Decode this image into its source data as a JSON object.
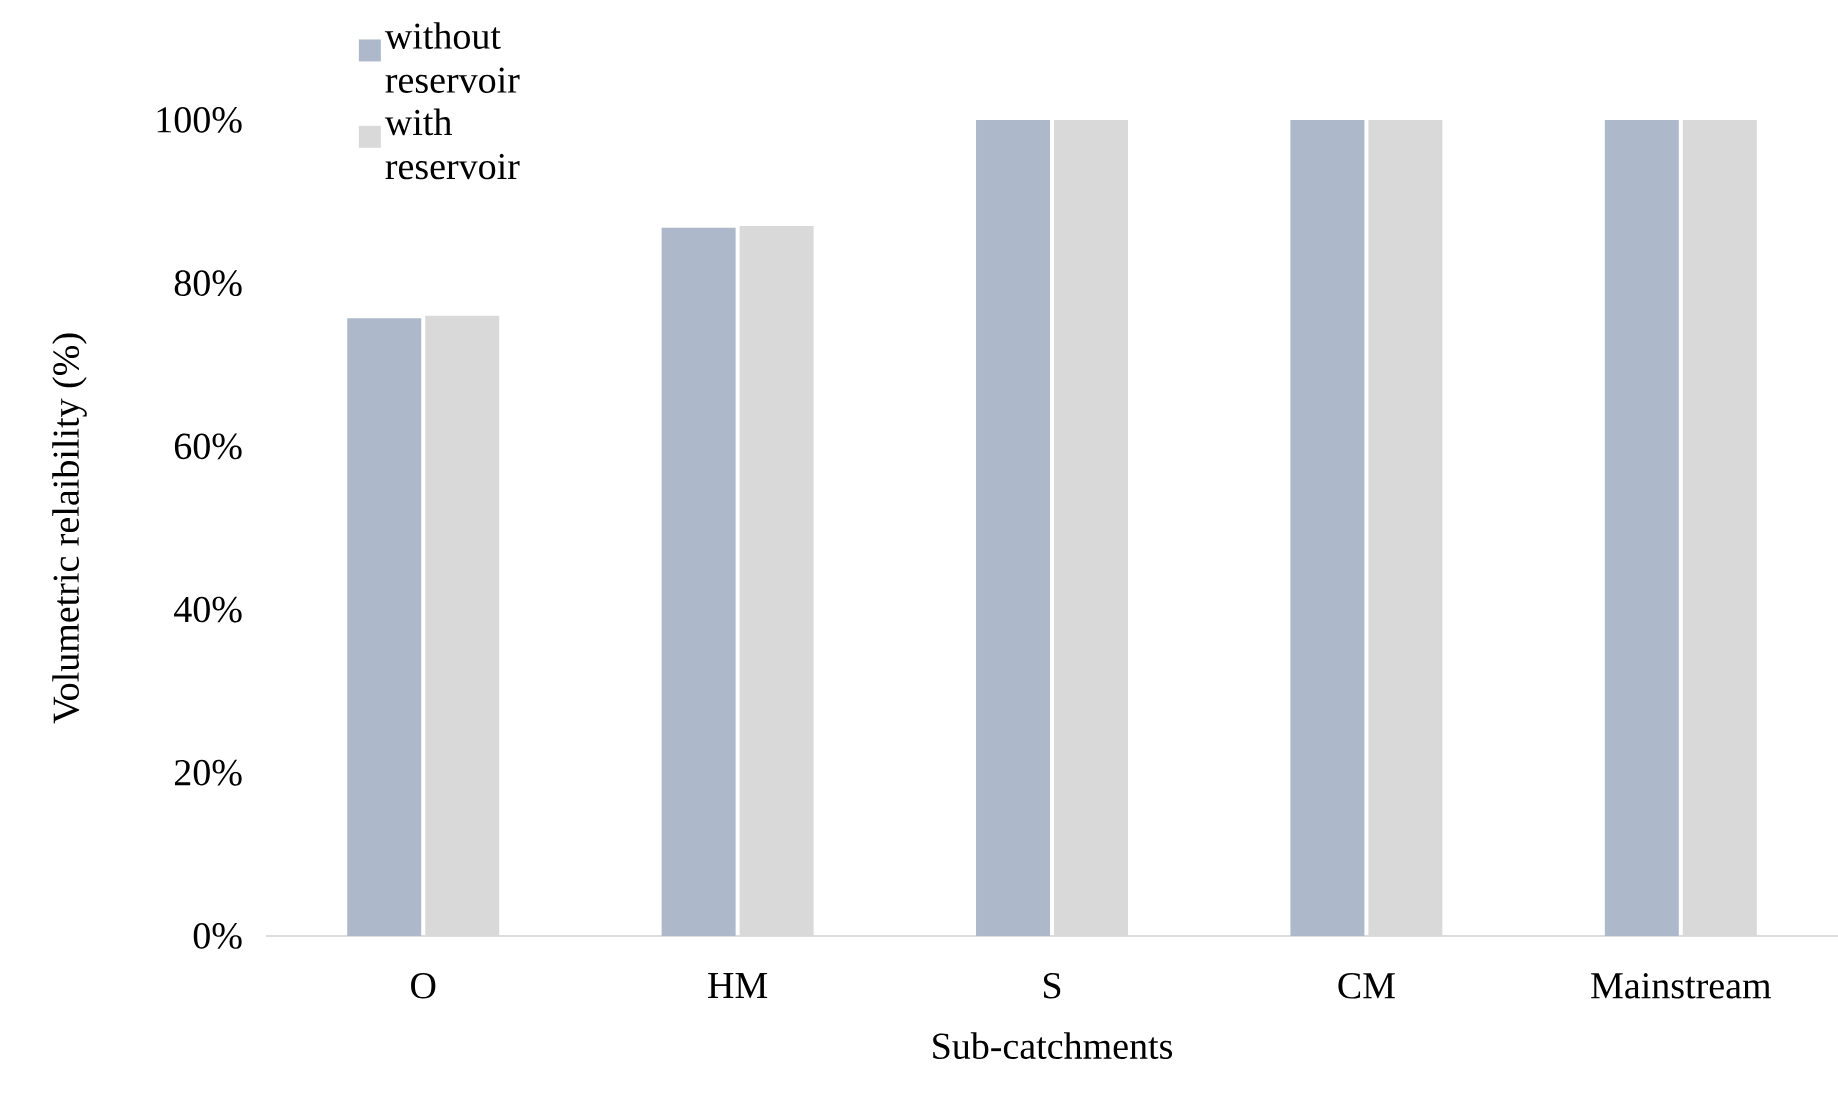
{
  "chart_data": {
    "type": "bar",
    "xlabel": "Sub-catchments",
    "ylabel": "Volumetric relaibility (%)",
    "categories": [
      "O",
      "HM",
      "S",
      "CM",
      "Mainstream"
    ],
    "series": [
      {
        "name": "without reservoir",
        "color": "#adb9ca",
        "values": [
          75.7,
          86.8,
          100,
          100,
          100
        ]
      },
      {
        "name": "with reservoir",
        "color": "#d9d9d9",
        "values": [
          76.0,
          87.0,
          100,
          100,
          100
        ]
      }
    ],
    "ylim": [
      0,
      100
    ],
    "yticks": [
      {
        "value": 0,
        "label": "0%"
      },
      {
        "value": 20,
        "label": "20%"
      },
      {
        "value": 40,
        "label": "40%"
      },
      {
        "value": 60,
        "label": "60%"
      },
      {
        "value": 80,
        "label": "80%"
      },
      {
        "value": 100,
        "label": "100%"
      }
    ],
    "legend": "top left"
  }
}
